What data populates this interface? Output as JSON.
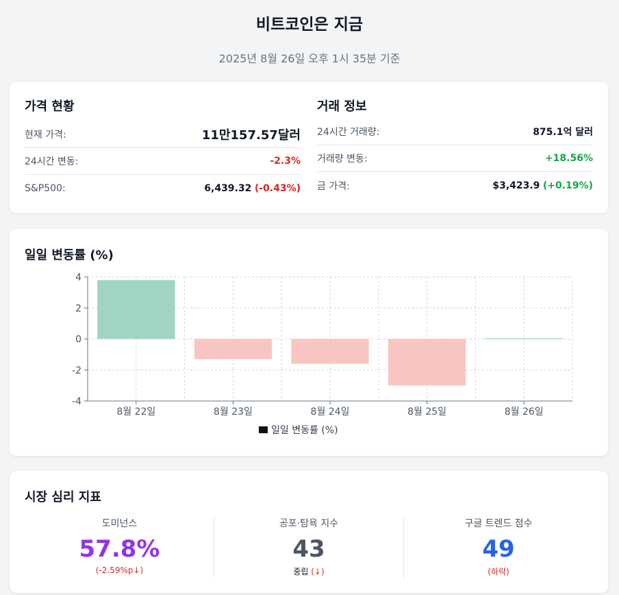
{
  "header": {
    "title": "비트코인은 지금",
    "subtitle": "2025년 8월 26일 오후 1시 35분 기준"
  },
  "price_status": {
    "title": "가격 현황",
    "rows": [
      {
        "label": "현재 가격:",
        "value": "11만157.57달러"
      },
      {
        "label": "24시간 변동:",
        "value": "-2.3%"
      },
      {
        "label": "S&P500:",
        "value": "6,439.32",
        "change": "(-0.43%)"
      }
    ]
  },
  "trade_info": {
    "title": "거래 정보",
    "rows": [
      {
        "label": "24시간 거래량:",
        "value": "875.1억 달러"
      },
      {
        "label": "거래량 변동:",
        "value": "+18.56%"
      },
      {
        "label": "금 가격:",
        "value": "$3,423.9",
        "change": "(+0.19%)"
      }
    ]
  },
  "chart_card": {
    "title": "일일 변동률 (%)"
  },
  "chart_data": {
    "type": "bar",
    "title": "일일 변동률 (%)",
    "categories": [
      "8월 22일",
      "8월 23일",
      "8월 24일",
      "8월 25일",
      "8월 26일"
    ],
    "series": [
      {
        "name": "일일 변동률 (%)",
        "values": [
          3.8,
          -1.3,
          -1.6,
          -3.0,
          0.05
        ]
      }
    ],
    "ylim": [
      -4,
      4
    ],
    "yticks": [
      "4",
      "2",
      "0",
      "-2",
      "-4"
    ],
    "grid": true,
    "legend": "bottom",
    "colors": {
      "positive": "#a0d5c4",
      "negative": "#f8c6c2",
      "legend_swatch": "#111111"
    }
  },
  "sentiment": {
    "title": "시장 심리 지표",
    "items": [
      {
        "label": "도미넌스",
        "value": "57.8%",
        "note": "(-2.59%p↓)",
        "color": "#9333ea",
        "note_color": "#dc2626"
      },
      {
        "label": "공포·탐욕 지수",
        "value": "43",
        "note_label": "중립",
        "note": "(↓)",
        "color": "#4b5563",
        "note_color": "#dc2626"
      },
      {
        "label": "구글 트렌드 점수",
        "value": "49",
        "note": "(하락)",
        "color": "#2563eb",
        "note_color": "#dc2626"
      }
    ]
  }
}
